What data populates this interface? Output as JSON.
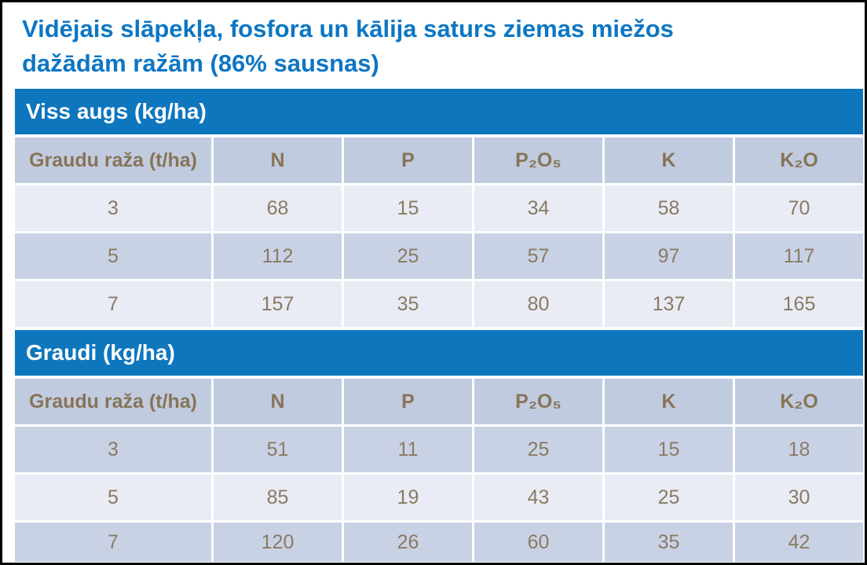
{
  "page": {
    "title_line1": "Vidējais slāpekļa, fosfora un kālija saturs ziemas miežos",
    "title_line2": "dažādām ražām (86% sausnas)"
  },
  "colors": {
    "title_blue": "#0d76c4",
    "section_bar_blue": "#0e76bd",
    "section_bar_text": "#ffffff",
    "header_row_bg": "#c1cbdf",
    "row_dark_bg": "#c9d2e5",
    "row_light_bg": "#e9ecf4",
    "cell_text_brown": "#8a7a64",
    "page_border": "#000000"
  },
  "chart_data": [
    {
      "type": "table",
      "title": "Viss augs (kg/ha)",
      "columns": [
        "Graudu raža (t/ha)",
        "N",
        "P",
        "P₂O₅",
        "K",
        "K₂O"
      ],
      "rows": [
        [
          "3",
          "68",
          "15",
          "34",
          "58",
          "70"
        ],
        [
          "5",
          "112",
          "25",
          "57",
          "97",
          "117"
        ],
        [
          "7",
          "157",
          "35",
          "80",
          "137",
          "165"
        ]
      ]
    },
    {
      "type": "table",
      "title": "Graudi (kg/ha)",
      "columns": [
        "Graudu raža (t/ha)",
        "N",
        "P",
        "P₂O₅",
        "K",
        "K₂O"
      ],
      "rows": [
        [
          "3",
          "51",
          "11",
          "25",
          "15",
          "18"
        ],
        [
          "5",
          "85",
          "19",
          "43",
          "25",
          "30"
        ],
        [
          "7",
          "120",
          "26",
          "60",
          "35",
          "42"
        ]
      ]
    }
  ]
}
